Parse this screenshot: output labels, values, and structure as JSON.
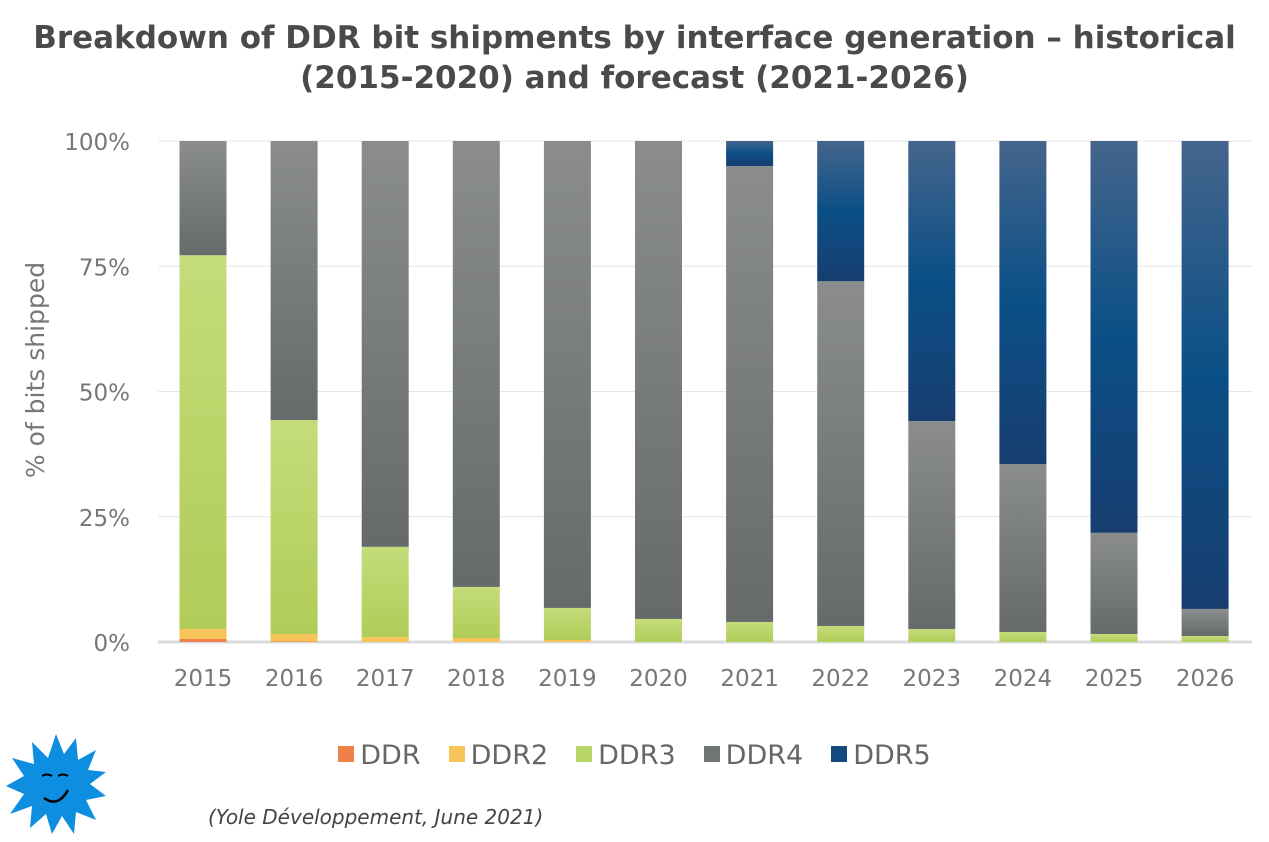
{
  "title": "Breakdown of DDR bit shipments by interface generation – historical (2015-2020) and forecast (2021-2026)",
  "source": "(Yole Développement, June 2021)",
  "chart_data": {
    "type": "bar",
    "stacked": true,
    "normalized": true,
    "title": "Breakdown of DDR bit shipments by interface generation – historical (2015-2020) and forecast (2021-2026)",
    "xlabel": "",
    "ylabel": "% of bits shipped",
    "ylim": [
      0,
      100
    ],
    "yticks": [
      "0%",
      "25%",
      "50%",
      "75%",
      "100%"
    ],
    "grid": true,
    "legend_position": "bottom",
    "categories": [
      "2015",
      "2016",
      "2017",
      "2018",
      "2019",
      "2020",
      "2021",
      "2022",
      "2023",
      "2024",
      "2025",
      "2026"
    ],
    "series": [
      {
        "name": "DDR",
        "color": "#f0804a",
        "values": [
          0.6,
          0.1,
          0,
          0,
          0,
          0,
          0,
          0,
          0,
          0,
          0,
          0
        ]
      },
      {
        "name": "DDR2",
        "color": "#f7c45a",
        "values": [
          2.0,
          1.5,
          1.0,
          0.8,
          0.4,
          0,
          0,
          0,
          0,
          0,
          0,
          0
        ]
      },
      {
        "name": "DDR3",
        "color": "#b9d66a",
        "values": [
          74.6,
          42.7,
          18.0,
          10.2,
          6.4,
          4.6,
          4.0,
          3.2,
          2.6,
          2.0,
          1.6,
          1.2
        ]
      },
      {
        "name": "DDR4",
        "color": "#717474",
        "values": [
          22.8,
          55.7,
          81.0,
          89.0,
          93.2,
          95.4,
          91.0,
          68.8,
          41.5,
          33.5,
          20.2,
          5.4
        ]
      },
      {
        "name": "DDR5",
        "color": "#154a7e",
        "values": [
          0,
          0,
          0,
          0,
          0,
          0,
          5.0,
          28.0,
          55.9,
          64.5,
          78.2,
          93.4
        ]
      }
    ]
  }
}
